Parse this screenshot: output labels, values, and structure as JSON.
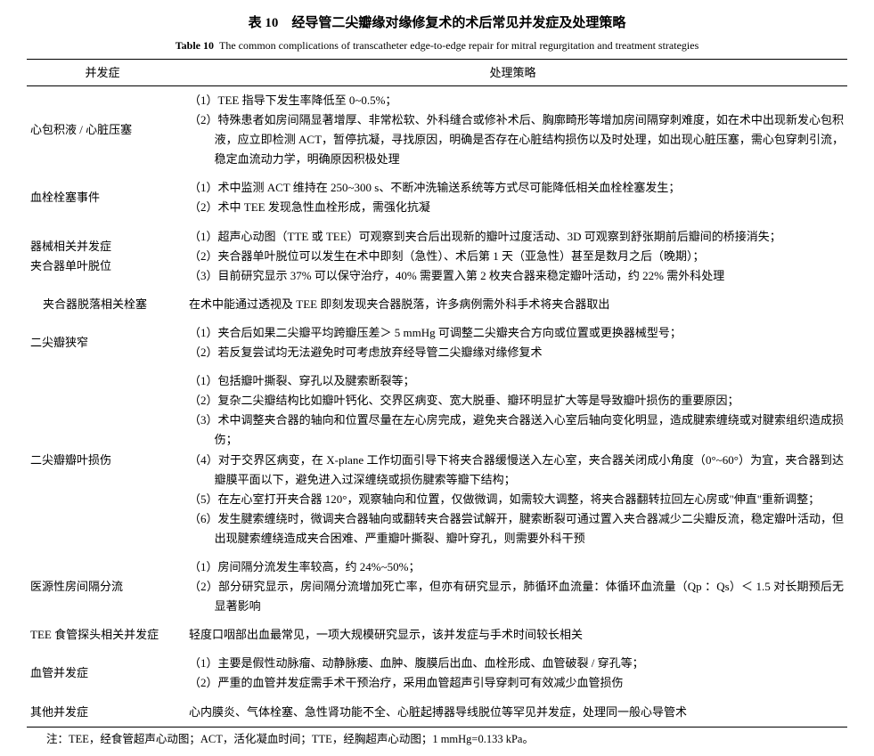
{
  "title": {
    "table_num_cn": "表 10",
    "cn": "经导管二尖瓣缘对缘修复术的术后常见并发症及处理策略",
    "table_num_en": "Table 10",
    "en": "The common complications of transcatheter edge-to-edge repair for mitral regurgitation and treatment strategies"
  },
  "headers": {
    "complication": "并发症",
    "strategy": "处理策略"
  },
  "rows": [
    {
      "comp": "心包积液 / 心脏压塞",
      "indent": false,
      "lines": [
        "（1）TEE 指导下发生率降低至 0~0.5%；",
        "（2）特殊患者如房间隔显著增厚、非常松软、外科缝合或修补术后、胸廓畸形等增加房间隔穿刺难度，如在术中出现新发心包积液，应立即检测 ACT，暂停抗凝，寻找原因，明确是否存在心脏结构损伤以及时处理，如出现心脏压塞，需心包穿刺引流，稳定血流动力学，明确原因积极处理"
      ]
    },
    {
      "comp": "血栓栓塞事件",
      "indent": false,
      "lines": [
        "（1）术中监测 ACT 维持在 250~300 s、不断冲洗输送系统等方式尽可能降低相关血栓栓塞发生；",
        "（2）术中 TEE 发现急性血栓形成，需强化抗凝"
      ]
    },
    {
      "comp": "器械相关并发症\n    夹合器单叶脱位",
      "indent": false,
      "lines": [
        "（1）超声心动图（TTE 或 TEE）可观察到夹合后出现新的瓣叶过度活动、3D 可观察到舒张期前后瓣间的桥接消失；",
        "（2）夹合器单叶脱位可以发生在术中即刻（急性）、术后第 1 天（亚急性）甚至是数月之后（晚期）；",
        "（3）目前研究显示 37% 可以保守治疗，40% 需要置入第 2 枚夹合器来稳定瓣叶活动，约 22% 需外科处理"
      ]
    },
    {
      "comp": "夹合器脱落相关栓塞",
      "indent": true,
      "single": true,
      "lines": [
        "在术中能通过透视及 TEE 即刻发现夹合器脱落，许多病例需外科手术将夹合器取出"
      ]
    },
    {
      "comp": "二尖瓣狭窄",
      "indent": false,
      "lines": [
        "（1）夹合后如果二尖瓣平均跨瓣压差＞ 5 mmHg 可调整二尖瓣夹合方向或位置或更换器械型号；",
        "（2）若反复尝试均无法避免时可考虑放弃经导管二尖瓣缘对缘修复术"
      ]
    },
    {
      "comp": "二尖瓣瓣叶损伤",
      "indent": false,
      "lines": [
        "（1）包括瓣叶撕裂、穿孔以及腱索断裂等；",
        "（2）复杂二尖瓣结构比如瓣叶钙化、交界区病变、宽大脱垂、瓣环明显扩大等是导致瓣叶损伤的重要原因；",
        "（3）术中调整夹合器的轴向和位置尽量在左心房完成，避免夹合器送入心室后轴向变化明显，造成腱索缠绕或对腱索组织造成损伤；",
        "（4）对于交界区病变，在 X-plane 工作切面引导下将夹合器缓慢送入左心室，夹合器关闭成小角度（0°~60°）为宜，夹合器到达瓣膜平面以下，避免进入过深缠绕或损伤腱索等瓣下结构；",
        "（5）在左心室打开夹合器 120°，观察轴向和位置，仅做微调，如需较大调整，将夹合器翻转拉回左心房或\"伸直\"重新调整；",
        "（6）发生腱索缠绕时，微调夹合器轴向或翻转夹合器尝试解开，腱索断裂可通过置入夹合器减少二尖瓣反流，稳定瓣叶活动，但出现腱索缠绕造成夹合困难、严重瓣叶撕裂、瓣叶穿孔，则需要外科干预"
      ]
    },
    {
      "comp": "医源性房间隔分流",
      "indent": false,
      "lines": [
        "（1）房间隔分流发生率较高，约 24%~50%；",
        "（2）部分研究显示，房间隔分流增加死亡率，但亦有研究显示，肺循环血流量：体循环血流量（Qp ：Qs）＜ 1.5 对长期预后无显著影响"
      ]
    },
    {
      "comp": "TEE 食管探头相关并发症",
      "indent": false,
      "single": true,
      "lines": [
        "轻度口咽部出血最常见，一项大规模研究显示，该并发症与手术时间较长相关"
      ]
    },
    {
      "comp": "血管并发症",
      "indent": false,
      "lines": [
        "（1）主要是假性动脉瘤、动静脉瘘、血肿、腹膜后出血、血栓形成、血管破裂 / 穿孔等；",
        "（2）严重的血管并发症需手术干预治疗，采用血管超声引导穿刺可有效减少血管损伤"
      ]
    },
    {
      "comp": "其他并发症",
      "indent": false,
      "single": true,
      "lines": [
        "心内膜炎、气体栓塞、急性肾功能不全、心脏起搏器导线脱位等罕见并发症，处理同一般心导管术"
      ]
    }
  ],
  "footnote": "注：TEE，经食管超声心动图；ACT，活化凝血时间；TTE，经胸超声心动图；1 mmHg=0.133 kPa。"
}
